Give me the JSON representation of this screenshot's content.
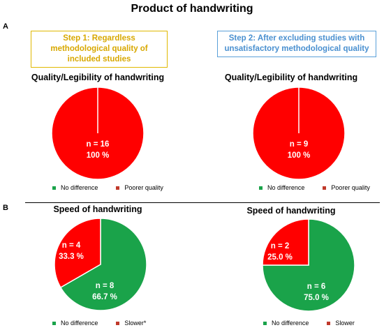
{
  "title": "Product of handwriting",
  "section_a_label": "A",
  "section_b_label": "B",
  "step1_label": "Step 1: Regardless methodological quality of included studies",
  "step2_label": "Step 2: After excluding studies with unsatisfactory methodological quality",
  "colors": {
    "green": "#1aa34a",
    "red": "#ff0000",
    "brown": "#c0392b",
    "step1": "#d8a800",
    "step2": "#4a90d0"
  },
  "chart_data": [
    {
      "type": "pie",
      "title": "Quality/Legibility of handwriting",
      "categories": [
        "No difference",
        "Poorer quality"
      ],
      "values": [
        0,
        16
      ],
      "percents": [
        0,
        100
      ],
      "slice_labels": [
        "",
        "n = 16\n100 %"
      ],
      "legend": [
        "No difference",
        "Poorer quality"
      ]
    },
    {
      "type": "pie",
      "title": "Quality/Legibility of handwriting",
      "categories": [
        "No difference",
        "Poorer quality"
      ],
      "values": [
        0,
        9
      ],
      "percents": [
        0,
        100
      ],
      "slice_labels": [
        "",
        "n = 9\n100 %"
      ],
      "legend": [
        "No difference",
        "Poorer quality"
      ]
    },
    {
      "type": "pie",
      "title": "Speed of handwriting",
      "categories": [
        "No difference",
        "Slower*"
      ],
      "values": [
        8,
        4
      ],
      "percents": [
        66.7,
        33.3
      ],
      "slice_labels": [
        "n = 8\n66.7 %",
        "n = 4\n33.3 %"
      ],
      "legend": [
        "No difference",
        "Slower*"
      ]
    },
    {
      "type": "pie",
      "title": "Speed of handwriting",
      "categories": [
        "No difference",
        "Slower"
      ],
      "values": [
        6,
        2
      ],
      "percents": [
        75.0,
        25.0
      ],
      "slice_labels": [
        "n = 6\n75.0 %",
        "n = 2\n25.0 %"
      ],
      "legend": [
        "No difference",
        "Slower"
      ]
    }
  ]
}
